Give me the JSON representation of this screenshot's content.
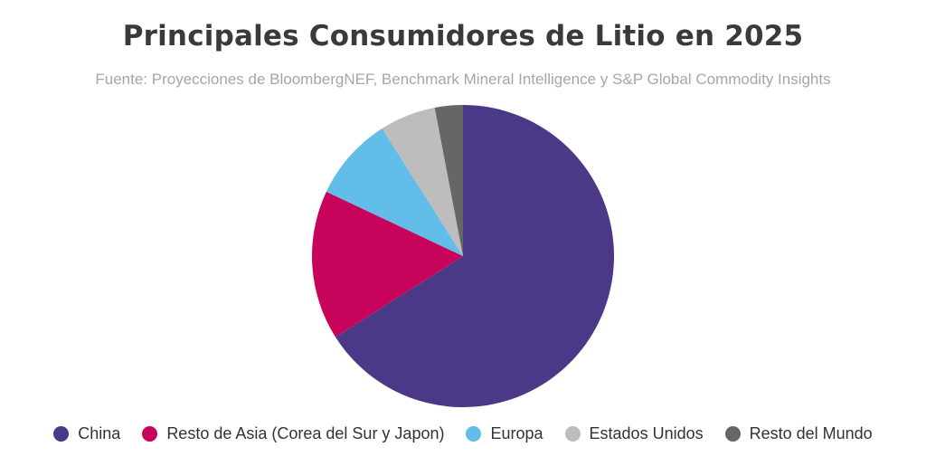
{
  "chart_data": {
    "type": "pie",
    "title": "Principales Consumidores de Litio en 2025",
    "subtitle": "Fuente: Proyecciones de BloombergNEF, Benchmark Mineral Intelligence y S&P Global Commodity Insights",
    "legend_position": "bottom",
    "slices": [
      {
        "label": "China",
        "value": 66,
        "color": "#4b3886"
      },
      {
        "label": "Resto de Asia (Corea del Sur y Japon)",
        "value": 16,
        "color": "#c8035c"
      },
      {
        "label": "Europa",
        "value": 9,
        "color": "#62bde9"
      },
      {
        "label": "Estados Unidos",
        "value": 6,
        "color": "#bdbdbd"
      },
      {
        "label": "Resto del Mundo",
        "value": 3,
        "color": "#666666"
      }
    ]
  }
}
